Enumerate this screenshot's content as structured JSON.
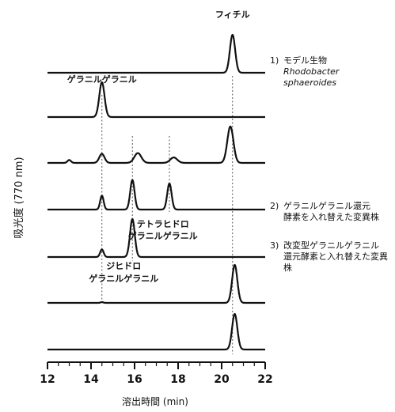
{
  "chart_data": {
    "type": "line",
    "xlabel": "溶出時間 (min)",
    "ylabel": "吸光度 (770 nm)",
    "xlim": [
      12,
      22
    ],
    "x_ticks": [
      12,
      14,
      16,
      18,
      20,
      22
    ],
    "grid": false,
    "reference_lines_x": [
      14.5,
      15.9,
      17.6,
      20.5
    ],
    "peak_labels": [
      {
        "text": "フィチル",
        "x": 20.5
      },
      {
        "text": "ゲラニルゲラニル",
        "x": 14.5
      },
      {
        "text": "テトラヒドロ",
        "x": 17.3
      },
      {
        "text": "ゲラニルゲラニル",
        "x": 17.3
      },
      {
        "text": "ジヒドロ",
        "x": 15.5
      },
      {
        "text": "ゲラニルゲラニル",
        "x": 15.5
      }
    ],
    "traces": [
      {
        "id": "trace-1",
        "peaks": [
          {
            "x": 20.5,
            "h": 1.0,
            "w": 0.12
          }
        ]
      },
      {
        "id": "trace-2",
        "peaks": [
          {
            "x": 14.5,
            "h": 1.0,
            "w": 0.12
          }
        ]
      },
      {
        "id": "trace-3",
        "peaks": [
          {
            "x": 13.0,
            "h": 0.08,
            "w": 0.08
          },
          {
            "x": 14.5,
            "h": 0.25,
            "w": 0.12
          },
          {
            "x": 16.15,
            "h": 0.27,
            "w": 0.16
          },
          {
            "x": 17.8,
            "h": 0.15,
            "w": 0.16
          },
          {
            "x": 20.4,
            "h": 1.0,
            "w": 0.14
          }
        ]
      },
      {
        "id": "trace-4",
        "peaks": [
          {
            "x": 14.5,
            "h": 0.4,
            "w": 0.08
          },
          {
            "x": 15.9,
            "h": 0.85,
            "w": 0.1
          },
          {
            "x": 17.6,
            "h": 0.75,
            "w": 0.1
          }
        ]
      },
      {
        "id": "trace-5",
        "peaks": [
          {
            "x": 14.5,
            "h": 0.2,
            "w": 0.08
          },
          {
            "x": 15.9,
            "h": 1.0,
            "w": 0.11
          }
        ]
      },
      {
        "id": "trace-6",
        "peaks": [
          {
            "x": 14.5,
            "h": 0.02,
            "w": 0.06
          },
          {
            "x": 20.6,
            "h": 1.0,
            "w": 0.12
          }
        ]
      },
      {
        "id": "trace-7",
        "peaks": [
          {
            "x": 20.6,
            "h": 1.0,
            "w": 0.12
          }
        ]
      }
    ],
    "legend": [
      {
        "marker": "1)",
        "lines": [
          "モデル生物"
        ],
        "italic_lines": [
          "Rhodobacter",
          "sphaeroides"
        ]
      },
      {
        "marker": "2)",
        "lines": [
          "ゲラニルゲラニル還元",
          "酵素を入れ替えた変異株"
        ],
        "italic_lines": []
      },
      {
        "marker": "3)",
        "lines": [
          "改変型ゲラニルゲラニル",
          "還元酵素と入れ替えた変異",
          "株"
        ],
        "italic_lines": []
      }
    ]
  }
}
